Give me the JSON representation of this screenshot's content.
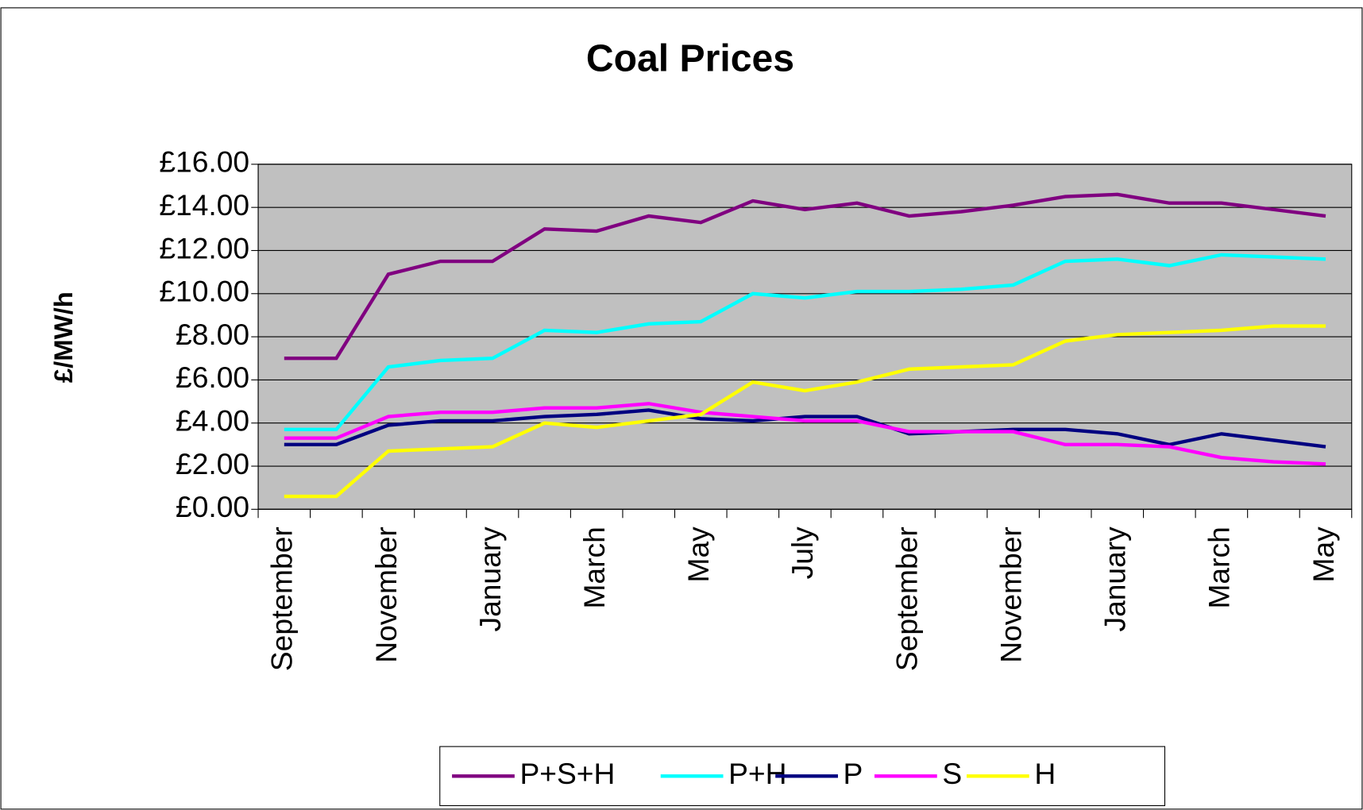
{
  "chart_data": {
    "type": "line",
    "title": "Coal Prices",
    "ylabel": "£/MW/h",
    "categories": [
      "September",
      null,
      "November",
      null,
      "January",
      null,
      "March",
      null,
      "May",
      null,
      "July",
      null,
      "September",
      null,
      "November",
      null,
      "January",
      null,
      "March",
      null,
      "May"
    ],
    "series": [
      {
        "name": "P+S+H",
        "color": "#800080",
        "values": [
          7.0,
          7.0,
          10.9,
          11.5,
          11.5,
          13.0,
          12.9,
          13.6,
          13.3,
          14.3,
          13.9,
          14.2,
          13.6,
          13.8,
          14.1,
          14.5,
          14.6,
          14.2,
          14.2,
          13.9,
          13.6
        ]
      },
      {
        "name": "P+H",
        "color": "#00ffff",
        "values": [
          3.7,
          3.7,
          6.6,
          6.9,
          7.0,
          8.3,
          8.2,
          8.6,
          8.7,
          10.0,
          9.8,
          10.1,
          10.1,
          10.2,
          10.4,
          11.5,
          11.6,
          11.3,
          11.8,
          11.7,
          11.6
        ]
      },
      {
        "name": "P",
        "color": "#000080",
        "values": [
          3.0,
          3.0,
          3.9,
          4.1,
          4.1,
          4.3,
          4.4,
          4.6,
          4.2,
          4.1,
          4.3,
          4.3,
          3.5,
          3.6,
          3.7,
          3.7,
          3.5,
          3.0,
          3.5,
          3.2,
          2.9
        ]
      },
      {
        "name": "S",
        "color": "#ff00ff",
        "values": [
          3.3,
          3.3,
          4.3,
          4.5,
          4.5,
          4.7,
          4.7,
          4.9,
          4.5,
          4.3,
          4.1,
          4.1,
          3.6,
          3.6,
          3.6,
          3.0,
          3.0,
          2.9,
          2.4,
          2.2,
          2.1
        ]
      },
      {
        "name": "H",
        "color": "#ffff00",
        "values": [
          0.6,
          0.6,
          2.7,
          2.8,
          2.9,
          4.0,
          3.8,
          4.1,
          4.4,
          5.9,
          5.5,
          5.9,
          6.5,
          6.6,
          6.7,
          7.8,
          8.1,
          8.2,
          8.3,
          8.5,
          8.5
        ]
      }
    ],
    "ylim": [
      0,
      16
    ],
    "yticks": [
      {
        "value": 0,
        "label": "£0.00"
      },
      {
        "value": 2,
        "label": "£2.00"
      },
      {
        "value": 4,
        "label": "£4.00"
      },
      {
        "value": 6,
        "label": "£6.00"
      },
      {
        "value": 8,
        "label": "£8.00"
      },
      {
        "value": 10,
        "label": "£10.00"
      },
      {
        "value": 12,
        "label": "£12.00"
      },
      {
        "value": 14,
        "label": "£14.00"
      },
      {
        "value": 16,
        "label": "£16.00"
      }
    ],
    "grid": true,
    "legend": "bottom"
  }
}
